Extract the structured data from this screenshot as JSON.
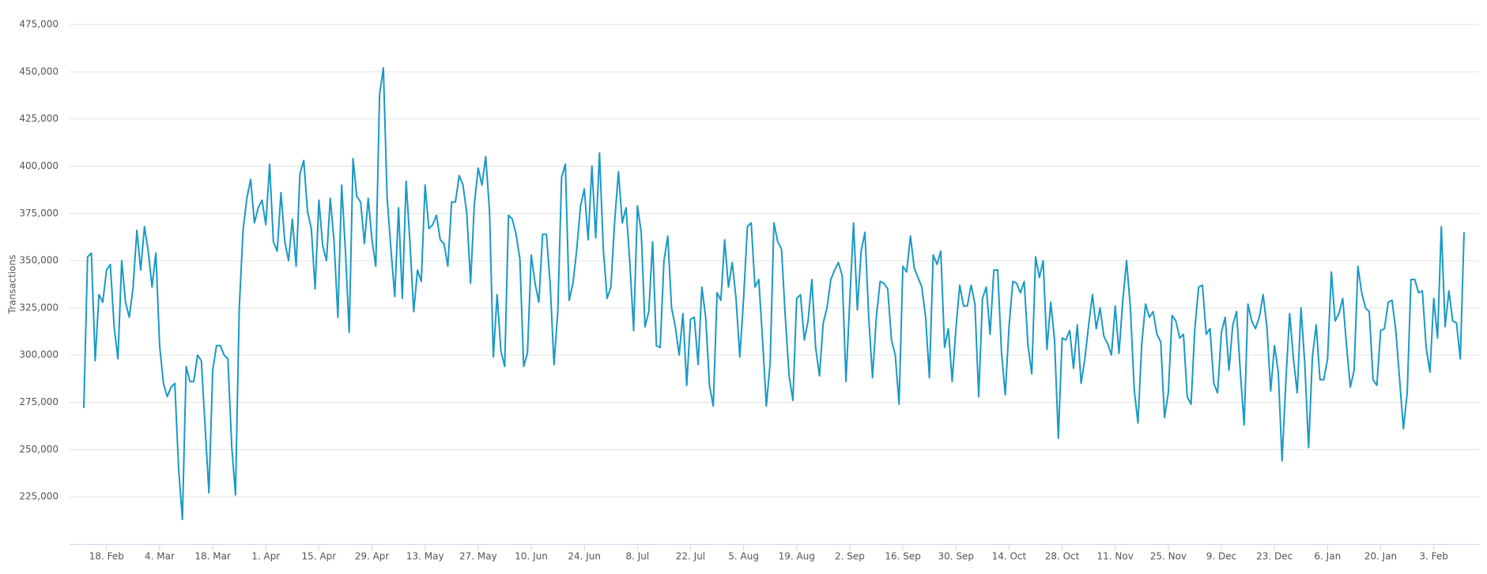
{
  "chart_data": {
    "type": "line",
    "y_label": "Transactions",
    "color": "#1a99c6",
    "grid": true,
    "ylim": [
      200000,
      475000
    ],
    "yticks": [
      {
        "value": 225000,
        "label": "225,000"
      },
      {
        "value": 250000,
        "label": "250,000"
      },
      {
        "value": 275000,
        "label": "275,000"
      },
      {
        "value": 300000,
        "label": "300,000"
      },
      {
        "value": 325000,
        "label": "325,000"
      },
      {
        "value": 350000,
        "label": "350,000"
      },
      {
        "value": 375000,
        "label": "375,000"
      },
      {
        "value": 400000,
        "label": "400,000"
      },
      {
        "value": 425000,
        "label": "425,000"
      },
      {
        "value": 450000,
        "label": "450,000"
      },
      {
        "value": 475000,
        "label": "475,000"
      }
    ],
    "categories": [
      null,
      null,
      null,
      null,
      null,
      null,
      "18. Feb",
      null,
      null,
      null,
      null,
      null,
      null,
      null,
      null,
      null,
      null,
      null,
      null,
      null,
      "4. Mar",
      null,
      null,
      null,
      null,
      null,
      null,
      null,
      null,
      null,
      null,
      null,
      null,
      null,
      "18. Mar",
      null,
      null,
      null,
      null,
      null,
      null,
      null,
      null,
      null,
      null,
      null,
      null,
      null,
      "1. Apr",
      null,
      null,
      null,
      null,
      null,
      null,
      null,
      null,
      null,
      null,
      null,
      null,
      null,
      "15. Apr",
      null,
      null,
      null,
      null,
      null,
      null,
      null,
      null,
      null,
      null,
      null,
      null,
      null,
      "29. Apr",
      null,
      null,
      null,
      null,
      null,
      null,
      null,
      null,
      null,
      null,
      null,
      null,
      null,
      "13. May",
      null,
      null,
      null,
      null,
      null,
      null,
      null,
      null,
      null,
      null,
      null,
      null,
      null,
      "27. May",
      null,
      null,
      null,
      null,
      null,
      null,
      null,
      null,
      null,
      null,
      null,
      null,
      null,
      "10. Jun",
      null,
      null,
      null,
      null,
      null,
      null,
      null,
      null,
      null,
      null,
      null,
      null,
      null,
      "24. Jun",
      null,
      null,
      null,
      null,
      null,
      null,
      null,
      null,
      null,
      null,
      null,
      null,
      null,
      "8. Jul",
      null,
      null,
      null,
      null,
      null,
      null,
      null,
      null,
      null,
      null,
      null,
      null,
      null,
      "22. Jul",
      null,
      null,
      null,
      null,
      null,
      null,
      null,
      null,
      null,
      null,
      null,
      null,
      null,
      "5. Aug",
      null,
      null,
      null,
      null,
      null,
      null,
      null,
      null,
      null,
      null,
      null,
      null,
      null,
      "19. Aug",
      null,
      null,
      null,
      null,
      null,
      null,
      null,
      null,
      null,
      null,
      null,
      null,
      null,
      "2. Sep",
      null,
      null,
      null,
      null,
      null,
      null,
      null,
      null,
      null,
      null,
      null,
      null,
      null,
      "16. Sep",
      null,
      null,
      null,
      null,
      null,
      null,
      null,
      null,
      null,
      null,
      null,
      null,
      null,
      "30. Sep",
      null,
      null,
      null,
      null,
      null,
      null,
      null,
      null,
      null,
      null,
      null,
      null,
      null,
      "14. Oct",
      null,
      null,
      null,
      null,
      null,
      null,
      null,
      null,
      null,
      null,
      null,
      null,
      null,
      "28. Oct",
      null,
      null,
      null,
      null,
      null,
      null,
      null,
      null,
      null,
      null,
      null,
      null,
      null,
      "11. Nov",
      null,
      null,
      null,
      null,
      null,
      null,
      null,
      null,
      null,
      null,
      null,
      null,
      null,
      "25. Nov",
      null,
      null,
      null,
      null,
      null,
      null,
      null,
      null,
      null,
      null,
      null,
      null,
      null,
      "9. Dec",
      null,
      null,
      null,
      null,
      null,
      null,
      null,
      null,
      null,
      null,
      null,
      null,
      null,
      "23. Dec",
      null,
      null,
      null,
      null,
      null,
      null,
      null,
      null,
      null,
      null,
      null,
      null,
      null,
      "6. Jan",
      null,
      null,
      null,
      null,
      null,
      null,
      null,
      null,
      null,
      null,
      null,
      null,
      null,
      "20. Jan",
      null,
      null,
      null,
      null,
      null,
      null,
      null,
      null,
      null,
      null,
      null,
      null,
      null,
      "3. Feb",
      null,
      null,
      null,
      null,
      null,
      null,
      null,
      null
    ],
    "values": [
      272000,
      352000,
      354000,
      297000,
      332000,
      328000,
      345000,
      348000,
      315000,
      298000,
      350000,
      328000,
      320000,
      336000,
      366000,
      345000,
      368000,
      355000,
      336000,
      354000,
      305000,
      285000,
      278000,
      283000,
      285000,
      240000,
      213000,
      294000,
      286000,
      286000,
      300000,
      297000,
      262000,
      227000,
      292000,
      305000,
      305000,
      300000,
      298000,
      252000,
      226000,
      325000,
      366000,
      383000,
      393000,
      370000,
      378000,
      382000,
      369000,
      401000,
      360000,
      355000,
      386000,
      360000,
      350000,
      372000,
      347000,
      396000,
      403000,
      376000,
      367000,
      335000,
      382000,
      358000,
      350000,
      383000,
      360000,
      320000,
      390000,
      355000,
      312000,
      404000,
      384000,
      381000,
      359000,
      383000,
      361000,
      347000,
      438000,
      452000,
      383000,
      356000,
      331000,
      378000,
      330000,
      392000,
      360000,
      323000,
      345000,
      339000,
      390000,
      367000,
      369000,
      374000,
      361000,
      359000,
      347000,
      381000,
      381000,
      395000,
      390000,
      375000,
      338000,
      380000,
      399000,
      390000,
      405000,
      376000,
      299000,
      332000,
      302000,
      294000,
      374000,
      372000,
      364000,
      351000,
      294000,
      301000,
      353000,
      338000,
      328000,
      364000,
      364000,
      337000,
      295000,
      323000,
      394000,
      401000,
      329000,
      338000,
      356000,
      379000,
      388000,
      361000,
      400000,
      362000,
      407000,
      356000,
      330000,
      336000,
      371000,
      397000,
      370000,
      378000,
      349000,
      313000,
      379000,
      365000,
      315000,
      323000,
      360000,
      305000,
      304000,
      350000,
      363000,
      325000,
      315000,
      300000,
      322000,
      284000,
      319000,
      320000,
      295000,
      336000,
      320000,
      284000,
      273000,
      333000,
      329000,
      361000,
      336000,
      349000,
      330000,
      299000,
      330000,
      368000,
      370000,
      336000,
      340000,
      308000,
      273000,
      296000,
      370000,
      360000,
      356000,
      320000,
      289000,
      276000,
      330000,
      332000,
      308000,
      318000,
      340000,
      304000,
      289000,
      317000,
      325000,
      340000,
      345000,
      349000,
      342000,
      286000,
      329000,
      370000,
      324000,
      355000,
      365000,
      320000,
      288000,
      320000,
      339000,
      338000,
      335000,
      308000,
      300000,
      274000,
      347000,
      344000,
      363000,
      346000,
      341000,
      336000,
      320000,
      288000,
      353000,
      348000,
      355000,
      304000,
      314000,
      286000,
      314000,
      337000,
      326000,
      326000,
      337000,
      327000,
      278000,
      330000,
      336000,
      311000,
      345000,
      345000,
      302000,
      279000,
      315000,
      339000,
      338000,
      333000,
      339000,
      305000,
      290000,
      352000,
      341000,
      350000,
      303000,
      328000,
      308000,
      256000,
      309000,
      308000,
      313000,
      293000,
      316000,
      285000,
      298000,
      316000,
      332000,
      314000,
      325000,
      310000,
      306000,
      300000,
      326000,
      301000,
      329000,
      350000,
      325000,
      282000,
      264000,
      306000,
      327000,
      320000,
      323000,
      311000,
      307000,
      267000,
      280000,
      321000,
      318000,
      309000,
      311000,
      278000,
      274000,
      314000,
      336000,
      337000,
      311000,
      314000,
      285000,
      280000,
      312000,
      320000,
      292000,
      316000,
      323000,
      291000,
      263000,
      327000,
      318000,
      314000,
      320000,
      332000,
      315000,
      281000,
      305000,
      291000,
      244000,
      286000,
      322000,
      298000,
      280000,
      325000,
      295000,
      251000,
      299000,
      316000,
      287000,
      287000,
      298000,
      344000,
      318000,
      322000,
      330000,
      305000,
      283000,
      292000,
      347000,
      333000,
      325000,
      323000,
      287000,
      284000,
      313000,
      314000,
      328000,
      329000,
      313000,
      287000,
      261000,
      280000,
      340000,
      340000,
      333000,
      334000,
      304000,
      291000,
      330000,
      309000,
      368000,
      315000,
      334000,
      318000,
      317000,
      298000,
      365000
    ]
  }
}
